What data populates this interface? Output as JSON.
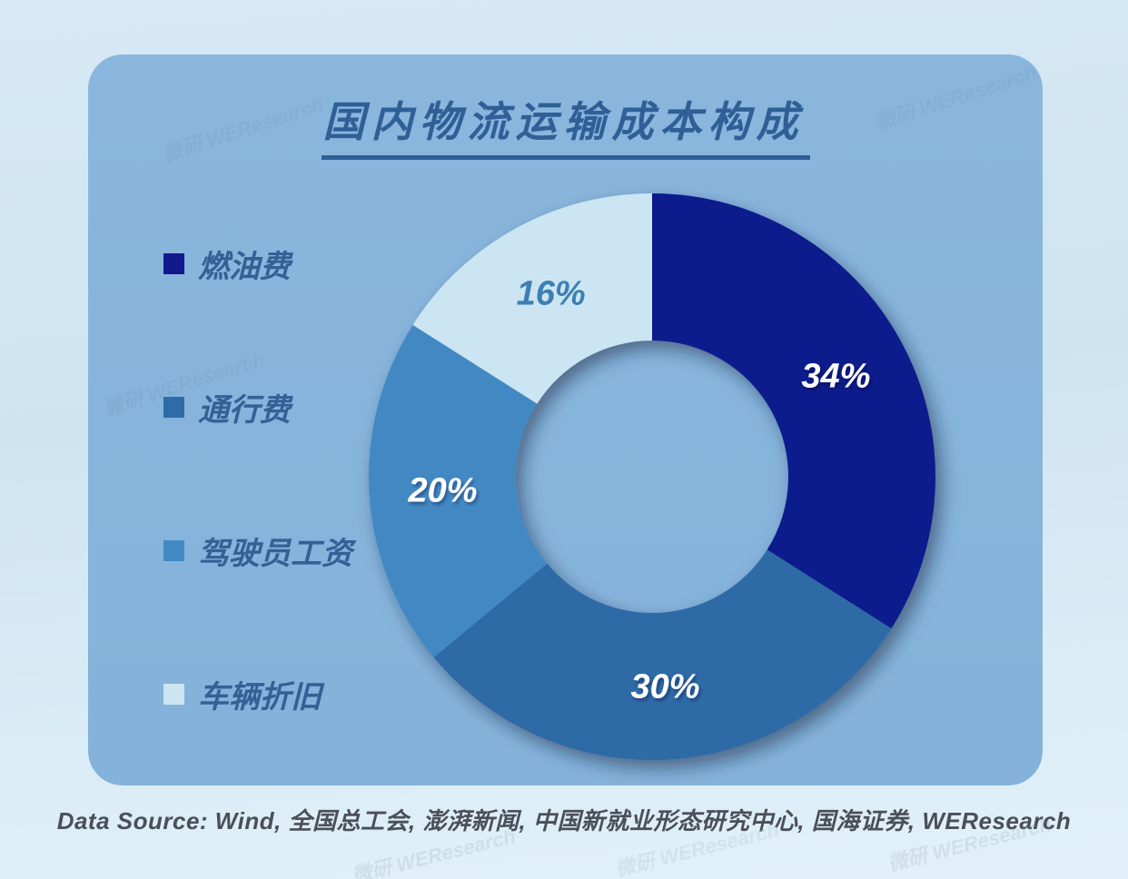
{
  "title": "国内物流运输成本构成",
  "watermark_text": "微研 WEResearch",
  "source_text": "Data Source: Wind, 全国总工会, 澎湃新闻, 中国新就业形态研究中心, 国海证券, WEResearch",
  "colors": {
    "page_bg_top": "#d6e9f4",
    "page_bg_bottom": "#e2f1f9",
    "panel_bg": "#86b4db",
    "title_text": "#2e5f97",
    "legend_text": "#336095",
    "source_text": "#4b4f57",
    "donut_shadow": "#0a1c3a"
  },
  "chart_data": {
    "type": "pie",
    "donut": true,
    "title": "国内物流运输成本构成",
    "start_angle_deg": 0,
    "direction": "clockwise",
    "legend_position": "left",
    "outer_radius_px": 312,
    "inner_radius_px": 150,
    "slices": [
      {
        "label": "燃油费",
        "value": 34,
        "display": "34%",
        "color": "#111a8c",
        "label_color": "#ffffff"
      },
      {
        "label": "通行费",
        "value": 30,
        "display": "30%",
        "color": "#2f6ba6",
        "label_color": "#ffffff"
      },
      {
        "label": "驾驶员工资",
        "value": 20,
        "display": "20%",
        "color": "#4389c3",
        "label_color": "#ffffff"
      },
      {
        "label": "车辆折旧",
        "value": 16,
        "display": "16%",
        "color": "#cbe5f2",
        "label_color": "#3e7fb2"
      }
    ]
  }
}
